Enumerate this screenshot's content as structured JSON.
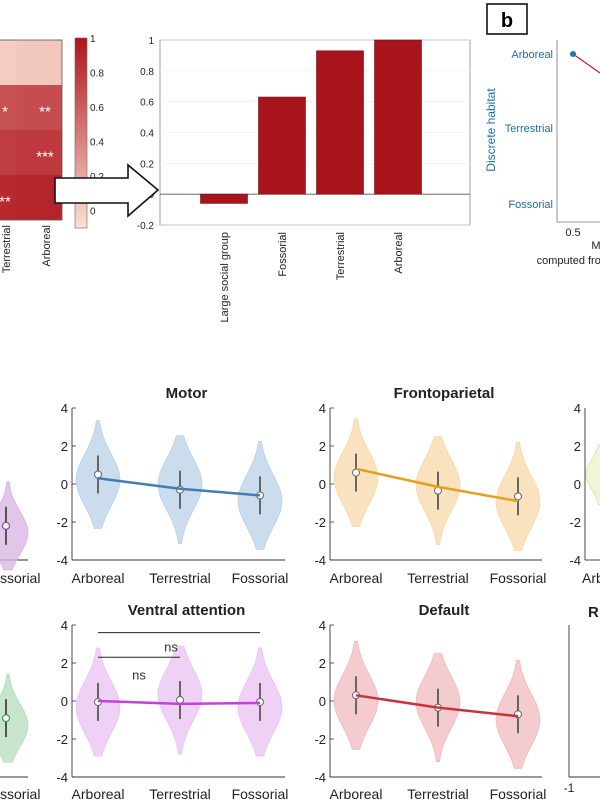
{
  "panel_label": "b",
  "heatmap": {
    "cells": [
      [
        0.1,
        0.12
      ],
      [
        0.7,
        0.72
      ],
      [
        0.8,
        0.82
      ],
      [
        0.9,
        0.92
      ]
    ],
    "star_labels": [
      [
        "",
        ""
      ],
      [
        "*",
        "**"
      ],
      [
        "",
        "***"
      ],
      [
        "**",
        ""
      ]
    ],
    "col_labels": [
      "Terrestrial",
      "Arboreal"
    ],
    "colorbar_ticks": [
      "1",
      "0.8",
      "0.6",
      "0.4",
      "0.2",
      "0"
    ]
  },
  "chart_data": [
    {
      "id": "bar-chart",
      "type": "bar",
      "categories": [
        "Large social group",
        "Fossorial",
        "Terrestrial",
        "Arboreal"
      ],
      "values": [
        -0.06,
        0.63,
        0.93,
        1.0
      ],
      "ylim": [
        -0.2,
        1
      ],
      "yticks": [
        "1",
        "0.8",
        "0.6",
        "0.4",
        "0.2",
        "0",
        "-0.2"
      ],
      "color": "#a8141c"
    },
    {
      "id": "habitat-scatter",
      "type": "line",
      "ylabel": "Discrete habitat",
      "ytick_labels": [
        "Arboreal",
        "Terrestrial",
        "Fossorial"
      ],
      "xtick_label": "0.5",
      "xlabel_lines": [
        "M",
        "computed from"
      ],
      "points": [
        {
          "x": 0.5,
          "y": "Arboreal"
        }
      ]
    },
    {
      "id": "violin-panels",
      "type": "violin",
      "categories": [
        "Arboreal",
        "Terrestrial",
        "Fossorial"
      ],
      "yticks": [
        "4",
        "2",
        "0",
        "-2",
        "-4"
      ],
      "ylim": [
        -4,
        4
      ],
      "panels": [
        {
          "title": "Motor",
          "color": "#3f7fb5",
          "fill": "#b9d2e6",
          "means": [
            0.5,
            -0.3,
            -0.6
          ],
          "trend": [
            0.3,
            -0.6
          ]
        },
        {
          "title": "Frontoparietal",
          "color": "#e5a020",
          "fill": "#f7d8a8",
          "means": [
            0.6,
            -0.35,
            -0.65
          ],
          "trend": [
            0.8,
            -0.9
          ]
        },
        {
          "title": "Ventral attention",
          "color": "#c341d8",
          "fill": "#e8c2f2",
          "means": [
            -0.05,
            0.05,
            -0.05
          ],
          "trend": [
            0.0,
            -0.1
          ],
          "sig": [
            "ns",
            "ns"
          ]
        },
        {
          "title": "Default",
          "color": "#c8343a",
          "fill": "#f0b9bd",
          "means": [
            0.3,
            -0.35,
            -0.7
          ],
          "trend": [
            0.3,
            -0.8
          ]
        }
      ],
      "left_partial": {
        "top": {
          "tick_label": "ssorial",
          "color": "#8e44ad",
          "fill": "#d8b8e4",
          "mean": -2.2
        },
        "bottom": {
          "tick_label": "ssorial",
          "color": "#2e9e4a",
          "fill": "#b9dfc0",
          "mean": -0.9
        }
      },
      "right_partial": {
        "top": {
          "tick_label": "Arb",
          "yticks": [
            "4",
            "2",
            "0",
            "-2",
            "-4"
          ]
        },
        "bottom": {
          "title": "R",
          "xtick_label": "-1"
        }
      }
    }
  ]
}
